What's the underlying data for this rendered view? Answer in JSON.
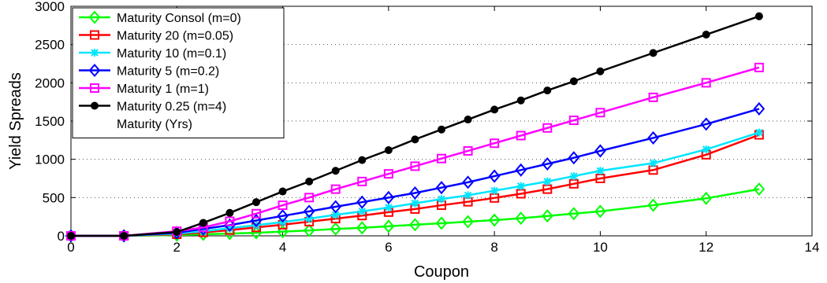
{
  "chart_data": {
    "type": "line",
    "xlabel": "Coupon",
    "ylabel": "Yield Spreads",
    "xlim": [
      0,
      14
    ],
    "ylim": [
      0,
      3000
    ],
    "xticks": [
      0,
      2,
      4,
      6,
      8,
      10,
      12,
      14
    ],
    "yticks": [
      0,
      500,
      1000,
      1500,
      2000,
      2500,
      3000
    ],
    "grid": "dotted horizontal",
    "legend_position": "top-left",
    "legend_title": "Maturity (Yrs)",
    "x": [
      0,
      1,
      2,
      2.5,
      3,
      3.5,
      4,
      4.5,
      5,
      5.5,
      6,
      6.5,
      7,
      7.5,
      8,
      8.5,
      9,
      9.5,
      10,
      11,
      12,
      13
    ],
    "series": [
      {
        "name": "Maturity Consol (m=0)",
        "color": "#00ff00",
        "marker": "diamond",
        "values": [
          0,
          0,
          10,
          20,
          30,
          40,
          55,
          70,
          90,
          105,
          125,
          145,
          165,
          185,
          205,
          230,
          260,
          290,
          320,
          400,
          490,
          610
        ]
      },
      {
        "name": "Maturity 20 (m=0.05)",
        "color": "#ff0000",
        "marker": "square",
        "values": [
          0,
          0,
          20,
          45,
          75,
          110,
          145,
          185,
          225,
          265,
          310,
          350,
          400,
          445,
          495,
          550,
          610,
          680,
          750,
          860,
          1060,
          1320
        ]
      },
      {
        "name": "Maturity 10 (m=0.1)",
        "color": "#00e5ff",
        "marker": "star",
        "values": [
          0,
          0,
          30,
          60,
          100,
          140,
          180,
          225,
          275,
          320,
          370,
          425,
          480,
          530,
          590,
          650,
          710,
          780,
          850,
          950,
          1130,
          1350
        ]
      },
      {
        "name": "Maturity 5 (m=0.2)",
        "color": "#0000ff",
        "marker": "diamond",
        "values": [
          0,
          0,
          40,
          90,
          140,
          200,
          260,
          320,
          380,
          440,
          500,
          560,
          630,
          700,
          780,
          860,
          940,
          1020,
          1110,
          1280,
          1460,
          1660
        ]
      },
      {
        "name": "Maturity 1 (m=1)",
        "color": "#ff00ff",
        "marker": "square",
        "values": [
          0,
          0,
          60,
          110,
          190,
          290,
          400,
          500,
          610,
          710,
          810,
          910,
          1010,
          1110,
          1210,
          1310,
          1410,
          1510,
          1610,
          1810,
          2000,
          2200
        ]
      },
      {
        "name": "Maturity 0.25 (m=4)",
        "color": "#000000",
        "marker": "dot",
        "values": [
          0,
          0,
          50,
          170,
          300,
          440,
          580,
          710,
          850,
          990,
          1120,
          1260,
          1390,
          1520,
          1650,
          1770,
          1900,
          2020,
          2150,
          2390,
          2630,
          2870
        ]
      }
    ]
  }
}
